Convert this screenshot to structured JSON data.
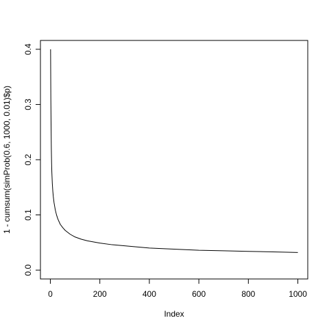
{
  "chart_data": {
    "type": "line",
    "title": "",
    "xlabel": "Index",
    "ylabel": "1 - cumsum(simProb(0.6, 1000, 0.01)$p)",
    "xlim": [
      -40,
      1040
    ],
    "ylim": [
      -0.016,
      0.416
    ],
    "x_ticks": [
      0,
      200,
      400,
      600,
      800,
      1000
    ],
    "x_tick_labels": [
      "0",
      "200",
      "400",
      "600",
      "800",
      "1000"
    ],
    "y_ticks": [
      0.0,
      0.1,
      0.2,
      0.3,
      0.4
    ],
    "y_tick_labels": [
      "0.0",
      "0.1",
      "0.2",
      "0.3",
      "0.4"
    ],
    "grid": false,
    "legend": "none",
    "series": [
      {
        "color": "#000000",
        "x": [
          1,
          2,
          3,
          4,
          5,
          6,
          8,
          10,
          12,
          15,
          20,
          25,
          30,
          40,
          50,
          60,
          80,
          100,
          125,
          150,
          200,
          250,
          300,
          400,
          500,
          600,
          700,
          800,
          900,
          1000
        ],
        "y": [
          0.4,
          0.31,
          0.26,
          0.22,
          0.195,
          0.178,
          0.157,
          0.143,
          0.133,
          0.122,
          0.109,
          0.1,
          0.093,
          0.083,
          0.077,
          0.072,
          0.065,
          0.06,
          0.056,
          0.053,
          0.049,
          0.046,
          0.044,
          0.04,
          0.038,
          0.036,
          0.035,
          0.034,
          0.033,
          0.032
        ]
      }
    ]
  }
}
